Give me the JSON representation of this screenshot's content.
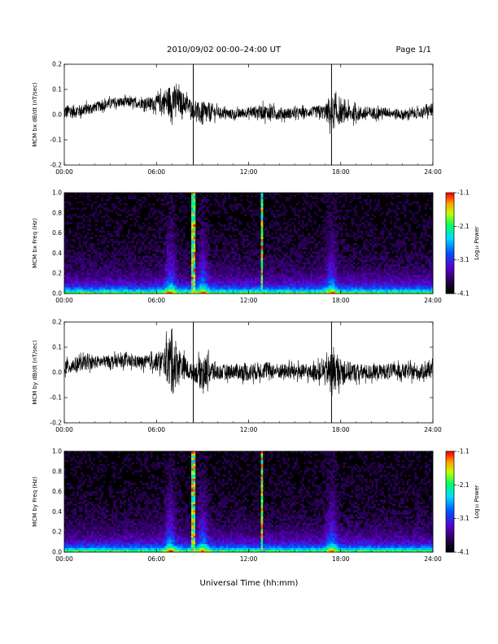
{
  "header": {
    "title": "2010/09/02  00:00–24:00 UT",
    "page": "Page 1/1"
  },
  "chart_data": [
    {
      "type": "line",
      "ylabel": "MCM bx dB/dt (nT/sec)",
      "xlim": [
        0,
        24
      ],
      "ylim": [
        -0.2,
        0.2
      ],
      "x_ticks": [
        "00:00",
        "06:00",
        "12:00",
        "18:00",
        "24:00"
      ],
      "y_ticks": [
        "-0.2",
        "-0.1",
        "0.0",
        "0.1",
        "0.2"
      ],
      "markers_hours": [
        8.4,
        17.4
      ],
      "series_envelope": {
        "hours": [
          0,
          1,
          2,
          3,
          4,
          5,
          6,
          6.5,
          7,
          7.5,
          8,
          8.4,
          9,
          9.5,
          10,
          11,
          12,
          13,
          14,
          15,
          16,
          17,
          17.4,
          18,
          19,
          20,
          21,
          22,
          23,
          24
        ],
        "baseline": [
          0.01,
          0.015,
          0.03,
          0.045,
          0.05,
          0.045,
          0.045,
          0.05,
          0.055,
          0.05,
          0.04,
          0.02,
          0.0,
          0.01,
          0.01,
          0.0,
          0.01,
          0.01,
          0.005,
          0.005,
          0.01,
          0.01,
          0.005,
          0.005,
          0.005,
          0.005,
          0.01,
          0.0,
          0.005,
          0.02
        ],
        "amplitude": [
          0.03,
          0.025,
          0.02,
          0.02,
          0.02,
          0.02,
          0.03,
          0.05,
          0.07,
          0.05,
          0.04,
          0.03,
          0.05,
          0.04,
          0.02,
          0.02,
          0.02,
          0.03,
          0.025,
          0.02,
          0.02,
          0.03,
          0.07,
          0.04,
          0.03,
          0.025,
          0.02,
          0.02,
          0.02,
          0.025
        ]
      }
    },
    {
      "type": "heatmap",
      "ylabel": "MCM bx Freq (Hz)",
      "colorbar_label": "Log₁₀ Power",
      "colorbar_ticks": [
        "-1.1",
        "-2.1",
        "-3.1",
        "-4.1"
      ],
      "clim": [
        -4.1,
        -1.1
      ],
      "xlim": [
        0,
        24
      ],
      "ylim": [
        0,
        1
      ],
      "x_ticks": [
        "00:00",
        "06:00",
        "12:00",
        "18:00",
        "24:00"
      ],
      "y_ticks": [
        "0.0",
        "0.2",
        "0.4",
        "0.6",
        "0.8",
        "1.0"
      ],
      "bright_lines_hours": [
        8.4,
        12.85
      ],
      "active_bands_hours": [
        6.9,
        9.0,
        17.4
      ]
    },
    {
      "type": "line",
      "ylabel": "MCM by dB/dt (nT/sec)",
      "xlim": [
        0,
        24
      ],
      "ylim": [
        -0.2,
        0.2
      ],
      "x_ticks": [
        "00:00",
        "06:00",
        "12:00",
        "18:00",
        "24:00"
      ],
      "y_ticks": [
        "-0.2",
        "-0.1",
        "0.0",
        "0.1",
        "0.2"
      ],
      "markers_hours": [
        8.4,
        17.4
      ],
      "series_envelope": {
        "hours": [
          0,
          1,
          2,
          3,
          4,
          5,
          6,
          6.5,
          7,
          7.5,
          8,
          8.4,
          9,
          9.5,
          10,
          11,
          12,
          13,
          14,
          15,
          16,
          17,
          17.4,
          18,
          19,
          20,
          21,
          22,
          23,
          24
        ],
        "baseline": [
          0.02,
          0.035,
          0.04,
          0.045,
          0.045,
          0.04,
          0.04,
          0.045,
          0.04,
          0.035,
          0.01,
          0.0,
          0.0,
          0.005,
          0.0,
          0.005,
          0.0,
          0.01,
          0.005,
          0.005,
          0.0,
          0.005,
          0.0,
          0.005,
          0.0,
          0.0,
          0.005,
          0.005,
          0.0,
          0.01
        ],
        "amplitude": [
          0.03,
          0.03,
          0.025,
          0.025,
          0.025,
          0.025,
          0.035,
          0.05,
          0.14,
          0.06,
          0.04,
          0.03,
          0.07,
          0.05,
          0.03,
          0.03,
          0.035,
          0.035,
          0.03,
          0.03,
          0.03,
          0.04,
          0.09,
          0.05,
          0.035,
          0.03,
          0.03,
          0.03,
          0.03,
          0.03
        ]
      }
    },
    {
      "type": "heatmap",
      "ylabel": "MCM by Freq (Hz)",
      "colorbar_label": "Log₁₀ Power",
      "colorbar_ticks": [
        "-1.1",
        "-2.1",
        "-3.1",
        "-4.1"
      ],
      "clim": [
        -4.1,
        -1.1
      ],
      "xlim": [
        0,
        24
      ],
      "ylim": [
        0,
        1
      ],
      "x_ticks": [
        "00:00",
        "06:00",
        "12:00",
        "18:00",
        "24:00"
      ],
      "y_ticks": [
        "0.0",
        "0.2",
        "0.4",
        "0.6",
        "0.8",
        "1.0"
      ],
      "bright_lines_hours": [
        8.4,
        12.85
      ],
      "active_bands_hours": [
        6.9,
        9.0,
        17.4
      ]
    }
  ],
  "x_axis_label": "Universal Time (hh:mm)"
}
